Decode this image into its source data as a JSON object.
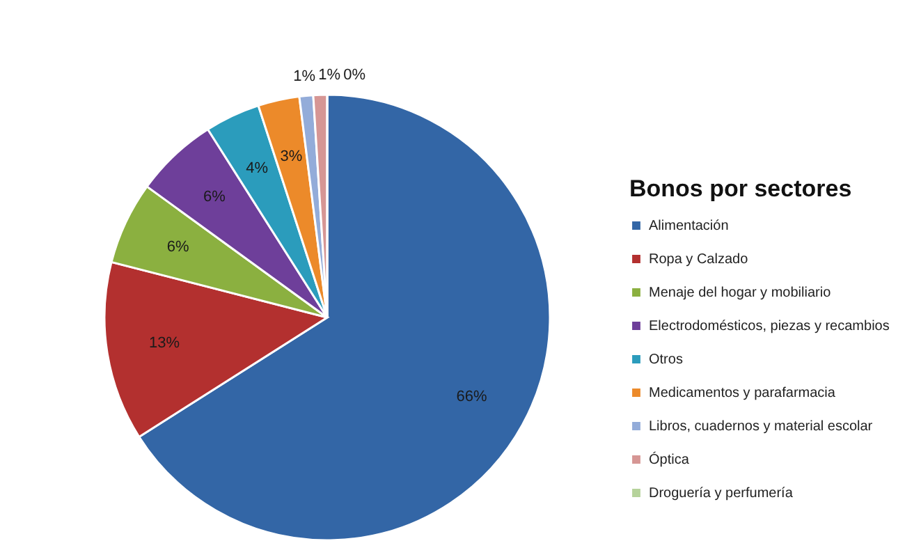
{
  "chart_data": {
    "type": "pie",
    "legend_title": "Bonos por sectores",
    "categories": [
      "Alimentación",
      "Ropa y Calzado",
      "Menaje del hogar y mobiliario",
      "Electrodomésticos, piezas y recambios",
      "Otros",
      "Medicamentos y parafarmacia",
      "Libros, cuadernos y  material escolar",
      "Óptica",
      "Droguería y perfumería"
    ],
    "values": [
      66,
      13,
      6,
      6,
      4,
      3,
      1,
      1,
      0
    ],
    "colors": [
      "#3366a6",
      "#b3302f",
      "#8bb040",
      "#6e3f9a",
      "#2b9cbc",
      "#ec8a2a",
      "#93acd9",
      "#d69694",
      "#b6d39b"
    ],
    "value_labels": [
      "66%",
      "13%",
      "6%",
      "6%",
      "4%",
      "3%",
      "1%",
      "1%",
      "0%"
    ],
    "legend": "right"
  }
}
